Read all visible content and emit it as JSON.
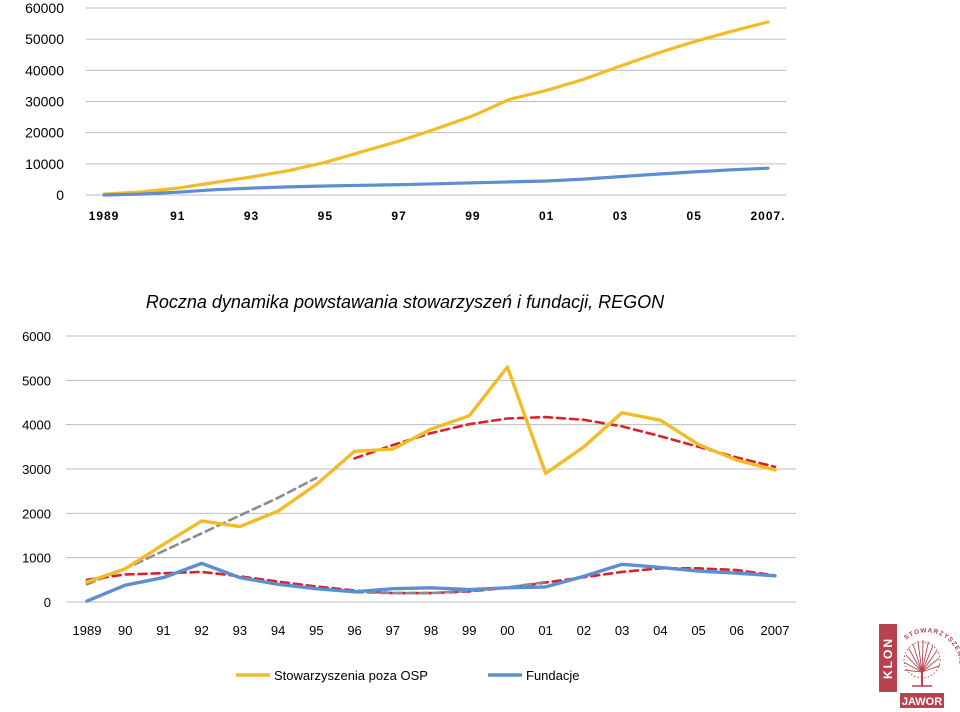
{
  "colors": {
    "stow": "#F2BC28",
    "fund": "#5B8FD1",
    "trend_stow": "#D9222A",
    "trend_grey": "#8C8C8C",
    "grid": "#BDBDBD",
    "logo": "#B8434F"
  },
  "chart_data": [
    {
      "type": "line",
      "title": "",
      "x": [
        "1989",
        "1990",
        "1991",
        "1992",
        "1993",
        "1994",
        "1995",
        "1996",
        "1997",
        "1998",
        "1999",
        "2000",
        "2001",
        "2002",
        "2003",
        "2004",
        "2005",
        "2006",
        "2007"
      ],
      "x_tick_labels": [
        "1989",
        "91",
        "93",
        "95",
        "97",
        "99",
        "01",
        "03",
        "05",
        "2007."
      ],
      "y_ticks": [
        "0",
        "10000",
        "20000",
        "30000",
        "40000",
        "50000",
        "60000"
      ],
      "ylim": [
        0,
        60000
      ],
      "grid": true,
      "series": [
        {
          "key": "stow",
          "values": [
            300,
            1000,
            2200,
            4000,
            5800,
            7800,
            10500,
            13900,
            17300,
            21200,
            25400,
            30700,
            33600,
            37100,
            41400,
            45500,
            49200,
            52500,
            55500
          ]
        },
        {
          "key": "fund",
          "values": [
            0,
            300,
            900,
            1700,
            2200,
            2600,
            2900,
            3100,
            3300,
            3600,
            3900,
            4200,
            4500,
            5100,
            5900,
            6700,
            7400,
            8100,
            8600
          ]
        }
      ]
    },
    {
      "type": "line",
      "title": "Roczna dynamika powstawania stowarzyszeń i fundacji, REGON",
      "x": [
        "1989",
        "90",
        "91",
        "92",
        "93",
        "94",
        "95",
        "96",
        "97",
        "98",
        "99",
        "00",
        "01",
        "02",
        "03",
        "04",
        "05",
        "06",
        "2007"
      ],
      "y_ticks": [
        "0",
        "1000",
        "2000",
        "3000",
        "4000",
        "5000",
        "6000"
      ],
      "ylim": [
        0,
        6000
      ],
      "grid": true,
      "legend_position": "bottom",
      "series": [
        {
          "key": "stow",
          "name": "Stowarzyszenia poza OSP",
          "values": [
            450,
            750,
            1300,
            1830,
            1700,
            2050,
            2650,
            3400,
            3450,
            3900,
            4200,
            5300,
            2900,
            3500,
            4270,
            4100,
            3550,
            3200,
            2980
          ]
        },
        {
          "key": "fund",
          "name": "Fundacje",
          "values": [
            20,
            380,
            550,
            870,
            550,
            400,
            300,
            230,
            300,
            320,
            280,
            320,
            340,
            580,
            850,
            780,
            700,
            650,
            590
          ]
        }
      ],
      "trendlines": [
        {
          "key": "trend_grey",
          "style": "dashed",
          "values": [
            400,
            750,
            1150,
            1550,
            1950,
            2350,
            2800
          ]
        },
        {
          "key": "trend_stow",
          "style": "dashed",
          "values": [
            null,
            null,
            null,
            null,
            null,
            null,
            null,
            3240,
            3540,
            3810,
            4010,
            4140,
            4170,
            4110,
            3960,
            3740,
            3500,
            3260,
            3050
          ]
        },
        {
          "key": "trend_stow",
          "style": "dashed",
          "values": [
            500,
            620,
            650,
            680,
            580,
            460,
            350,
            260,
            200,
            200,
            240,
            320,
            440,
            560,
            680,
            760,
            760,
            720,
            600
          ]
        },
        {
          "key": "trend_grey",
          "style": "dashed",
          "values": [
            null,
            null,
            null,
            null,
            null,
            null,
            null,
            220,
            200,
            200,
            250,
            330,
            450
          ]
        }
      ]
    }
  ],
  "logo": {
    "vertical_text": "KLON",
    "ring_text": "STOWARZYSZENIE",
    "bottom_text": "JAWOR"
  }
}
